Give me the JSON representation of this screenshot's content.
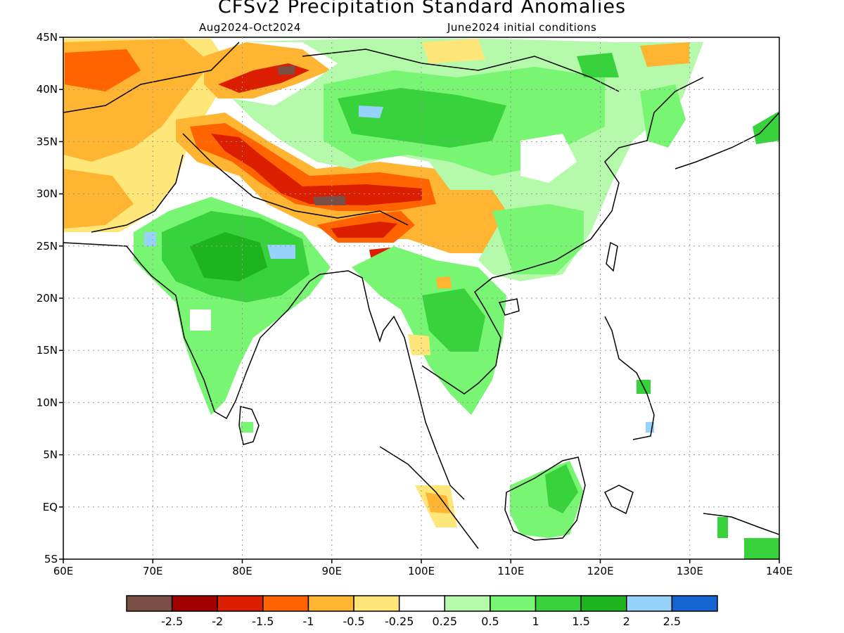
{
  "title": "CFSv2 Precipitation Standard Anomalies",
  "subtitle_left": "Aug2024-Oct2024",
  "subtitle_right": "June2024 initial conditions",
  "map": {
    "lon_range": [
      60,
      140
    ],
    "lat_range": [
      -5,
      45
    ],
    "gridlines": true,
    "lat_labels": [
      "45N",
      "40N",
      "35N",
      "30N",
      "25N",
      "20N",
      "15N",
      "10N",
      "5N",
      "EQ",
      "5S"
    ],
    "lon_labels": [
      "60E",
      "70E",
      "80E",
      "90E",
      "100E",
      "110E",
      "120E",
      "130E",
      "140E"
    ]
  },
  "colorbar": {
    "colors": [
      "#7a5046",
      "#a00000",
      "#dc1e00",
      "#ff6400",
      "#ffb432",
      "#ffe678",
      "#ffffff",
      "#b4faaa",
      "#78f573",
      "#37d23c",
      "#1eb41e",
      "#96d2fa",
      "#1464d2"
    ],
    "labels": [
      "-2.5",
      "-2",
      "-1.5",
      "-1",
      "-0.5",
      "-0.25",
      "0.25",
      "0.5",
      "1",
      "1.5",
      "2",
      "2.5"
    ]
  }
}
